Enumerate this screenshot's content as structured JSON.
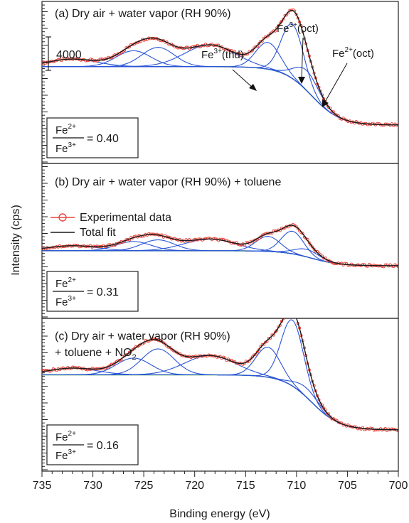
{
  "figure": {
    "ylabel": "Intensity (cps)",
    "xlabel": "Binding energy (eV)",
    "x_ticks": [
      "735",
      "730",
      "725",
      "720",
      "715",
      "710",
      "705",
      "700"
    ],
    "scale_bar_label": "4000",
    "scale_bar_value": 4000
  },
  "legend": {
    "experimental": "Experimental data",
    "total_fit": "Total fit"
  },
  "colors": {
    "experimental": "#e8453c",
    "total_fit": "#1a1a1a",
    "components": "#2a55d6",
    "background": "#3a9a3a"
  },
  "annotations": {
    "thd": "(thd)",
    "oct3": "(oct)",
    "oct2": "(oct)",
    "fe": "Fe",
    "sup3": "3+",
    "sup2": "2+"
  },
  "panels": [
    {
      "title": "(a) Dry air + water vapor (RH 90%)",
      "title2": "",
      "ratio_num_base": "Fe",
      "ratio_num_sup": "2+",
      "ratio_den_base": "Fe",
      "ratio_den_sup": "3+",
      "ratio_value": "= 0.40"
    },
    {
      "title": "(b) Dry air + water vapor (RH 90%) + toluene",
      "title2": "",
      "ratio_num_base": "Fe",
      "ratio_num_sup": "2+",
      "ratio_den_base": "Fe",
      "ratio_den_sup": "3+",
      "ratio_value": "= 0.31"
    },
    {
      "title": "(c) Dry air + water vapor (RH 90%)",
      "title2_base": "+ toluene + NO",
      "title2_sub": "2",
      "ratio_num_base": "Fe",
      "ratio_num_sup": "2+",
      "ratio_den_base": "Fe",
      "ratio_den_sup": "3+",
      "ratio_value": "= 0.16"
    }
  ],
  "chart_data": [
    {
      "type": "line",
      "panel": "a",
      "xlabel": "Binding energy (eV)",
      "ylabel": "Intensity (cps)",
      "xlim": [
        735,
        700
      ],
      "ylim": [
        0,
        25000
      ],
      "background_start": 9000,
      "background_end": 2000,
      "edge_center": 708.5,
      "edge_width": 1.4,
      "peaks": [
        {
          "center": 732.0,
          "amplitude": 900,
          "width": 2.4
        },
        {
          "center": 726.0,
          "amplitude": 1900,
          "width": 1.7
        },
        {
          "center": 723.6,
          "amplitude": 2300,
          "width": 1.6
        },
        {
          "center": 718.5,
          "amplitude": 2600,
          "width": 2.5
        },
        {
          "center": 712.8,
          "amplitude": 3200,
          "width": 1.2
        },
        {
          "center": 710.4,
          "amplitude": 6500,
          "width": 1.1
        },
        {
          "center": 709.0,
          "amplitude": 2400,
          "width": 1.2
        }
      ],
      "ratio": 0.4
    },
    {
      "type": "line",
      "panel": "b",
      "xlabel": "Binding energy (eV)",
      "ylabel": "Intensity (cps)",
      "xlim": [
        735,
        700
      ],
      "ylim": [
        0,
        25000
      ],
      "background_start": 6000,
      "background_end": 4200,
      "edge_center": 708.5,
      "edge_width": 1.4,
      "peaks": [
        {
          "center": 732.0,
          "amplitude": 600,
          "width": 2.4
        },
        {
          "center": 726.0,
          "amplitude": 1100,
          "width": 1.7
        },
        {
          "center": 723.6,
          "amplitude": 1300,
          "width": 1.6
        },
        {
          "center": 718.5,
          "amplitude": 1400,
          "width": 2.5
        },
        {
          "center": 712.8,
          "amplitude": 1800,
          "width": 1.2
        },
        {
          "center": 710.4,
          "amplitude": 2700,
          "width": 1.1
        },
        {
          "center": 709.0,
          "amplitude": 900,
          "width": 1.2
        }
      ],
      "ratio": 0.31
    },
    {
      "type": "line",
      "panel": "c",
      "xlabel": "Binding energy (eV)",
      "ylabel": "Intensity (cps)",
      "xlim": [
        735,
        700
      ],
      "ylim": [
        0,
        25000
      ],
      "background_start": 11000,
      "background_end": 4400,
      "edge_center": 708.5,
      "edge_width": 1.4,
      "peaks": [
        {
          "center": 732.0,
          "amplitude": 800,
          "width": 2.4
        },
        {
          "center": 726.0,
          "amplitude": 2000,
          "width": 1.7
        },
        {
          "center": 723.6,
          "amplitude": 3100,
          "width": 1.6
        },
        {
          "center": 718.5,
          "amplitude": 2300,
          "width": 2.5
        },
        {
          "center": 712.8,
          "amplitude": 3600,
          "width": 1.2
        },
        {
          "center": 710.4,
          "amplitude": 7900,
          "width": 1.1
        },
        {
          "center": 709.0,
          "amplitude": 1100,
          "width": 1.2
        }
      ],
      "ratio": 0.16
    }
  ]
}
